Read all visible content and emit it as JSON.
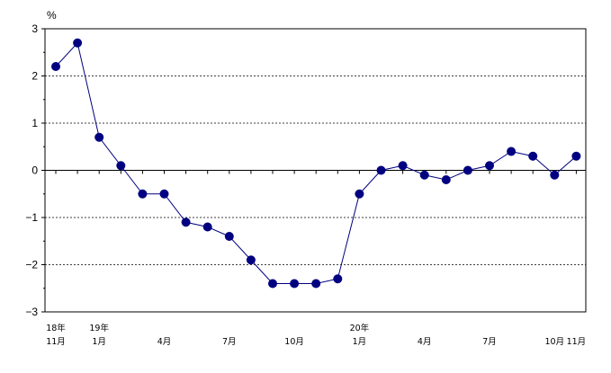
{
  "chart_data": {
    "type": "line",
    "unit": "%",
    "ylim": [
      -3,
      3
    ],
    "y_ticks": [
      3,
      2,
      1,
      0,
      -1,
      -2,
      -3
    ],
    "y_tick_labels": [
      "3",
      "2",
      "1",
      "0",
      "−1",
      "−2",
      "−3"
    ],
    "grid": "dashed horizontal lines at 1, 2, -1, -2; solid zero line",
    "x_labels": [
      {
        "index": 0,
        "top": "18年",
        "bottom": "11月"
      },
      {
        "index": 2,
        "top": "19年",
        "bottom": "1月"
      },
      {
        "index": 5,
        "top": "",
        "bottom": "4月"
      },
      {
        "index": 8,
        "top": "",
        "bottom": "7月"
      },
      {
        "index": 11,
        "top": "",
        "bottom": "10月"
      },
      {
        "index": 14,
        "top": "20年",
        "bottom": "1月"
      },
      {
        "index": 17,
        "top": "",
        "bottom": "4月"
      },
      {
        "index": 20,
        "top": "",
        "bottom": "7月"
      },
      {
        "index": 23,
        "top": "",
        "bottom": "10月"
      },
      {
        "index": 24,
        "top": "",
        "bottom": "11月"
      }
    ],
    "series": [
      {
        "color": "#000080",
        "values": [
          2.2,
          2.7,
          0.7,
          0.1,
          -0.5,
          -0.5,
          -1.1,
          -1.2,
          -1.4,
          -1.9,
          -2.4,
          -2.4,
          -2.4,
          -2.3,
          -0.5,
          0.0,
          0.1,
          -0.1,
          -0.2,
          0.0,
          0.1,
          0.4,
          0.3,
          -0.1,
          0.3
        ]
      }
    ]
  }
}
